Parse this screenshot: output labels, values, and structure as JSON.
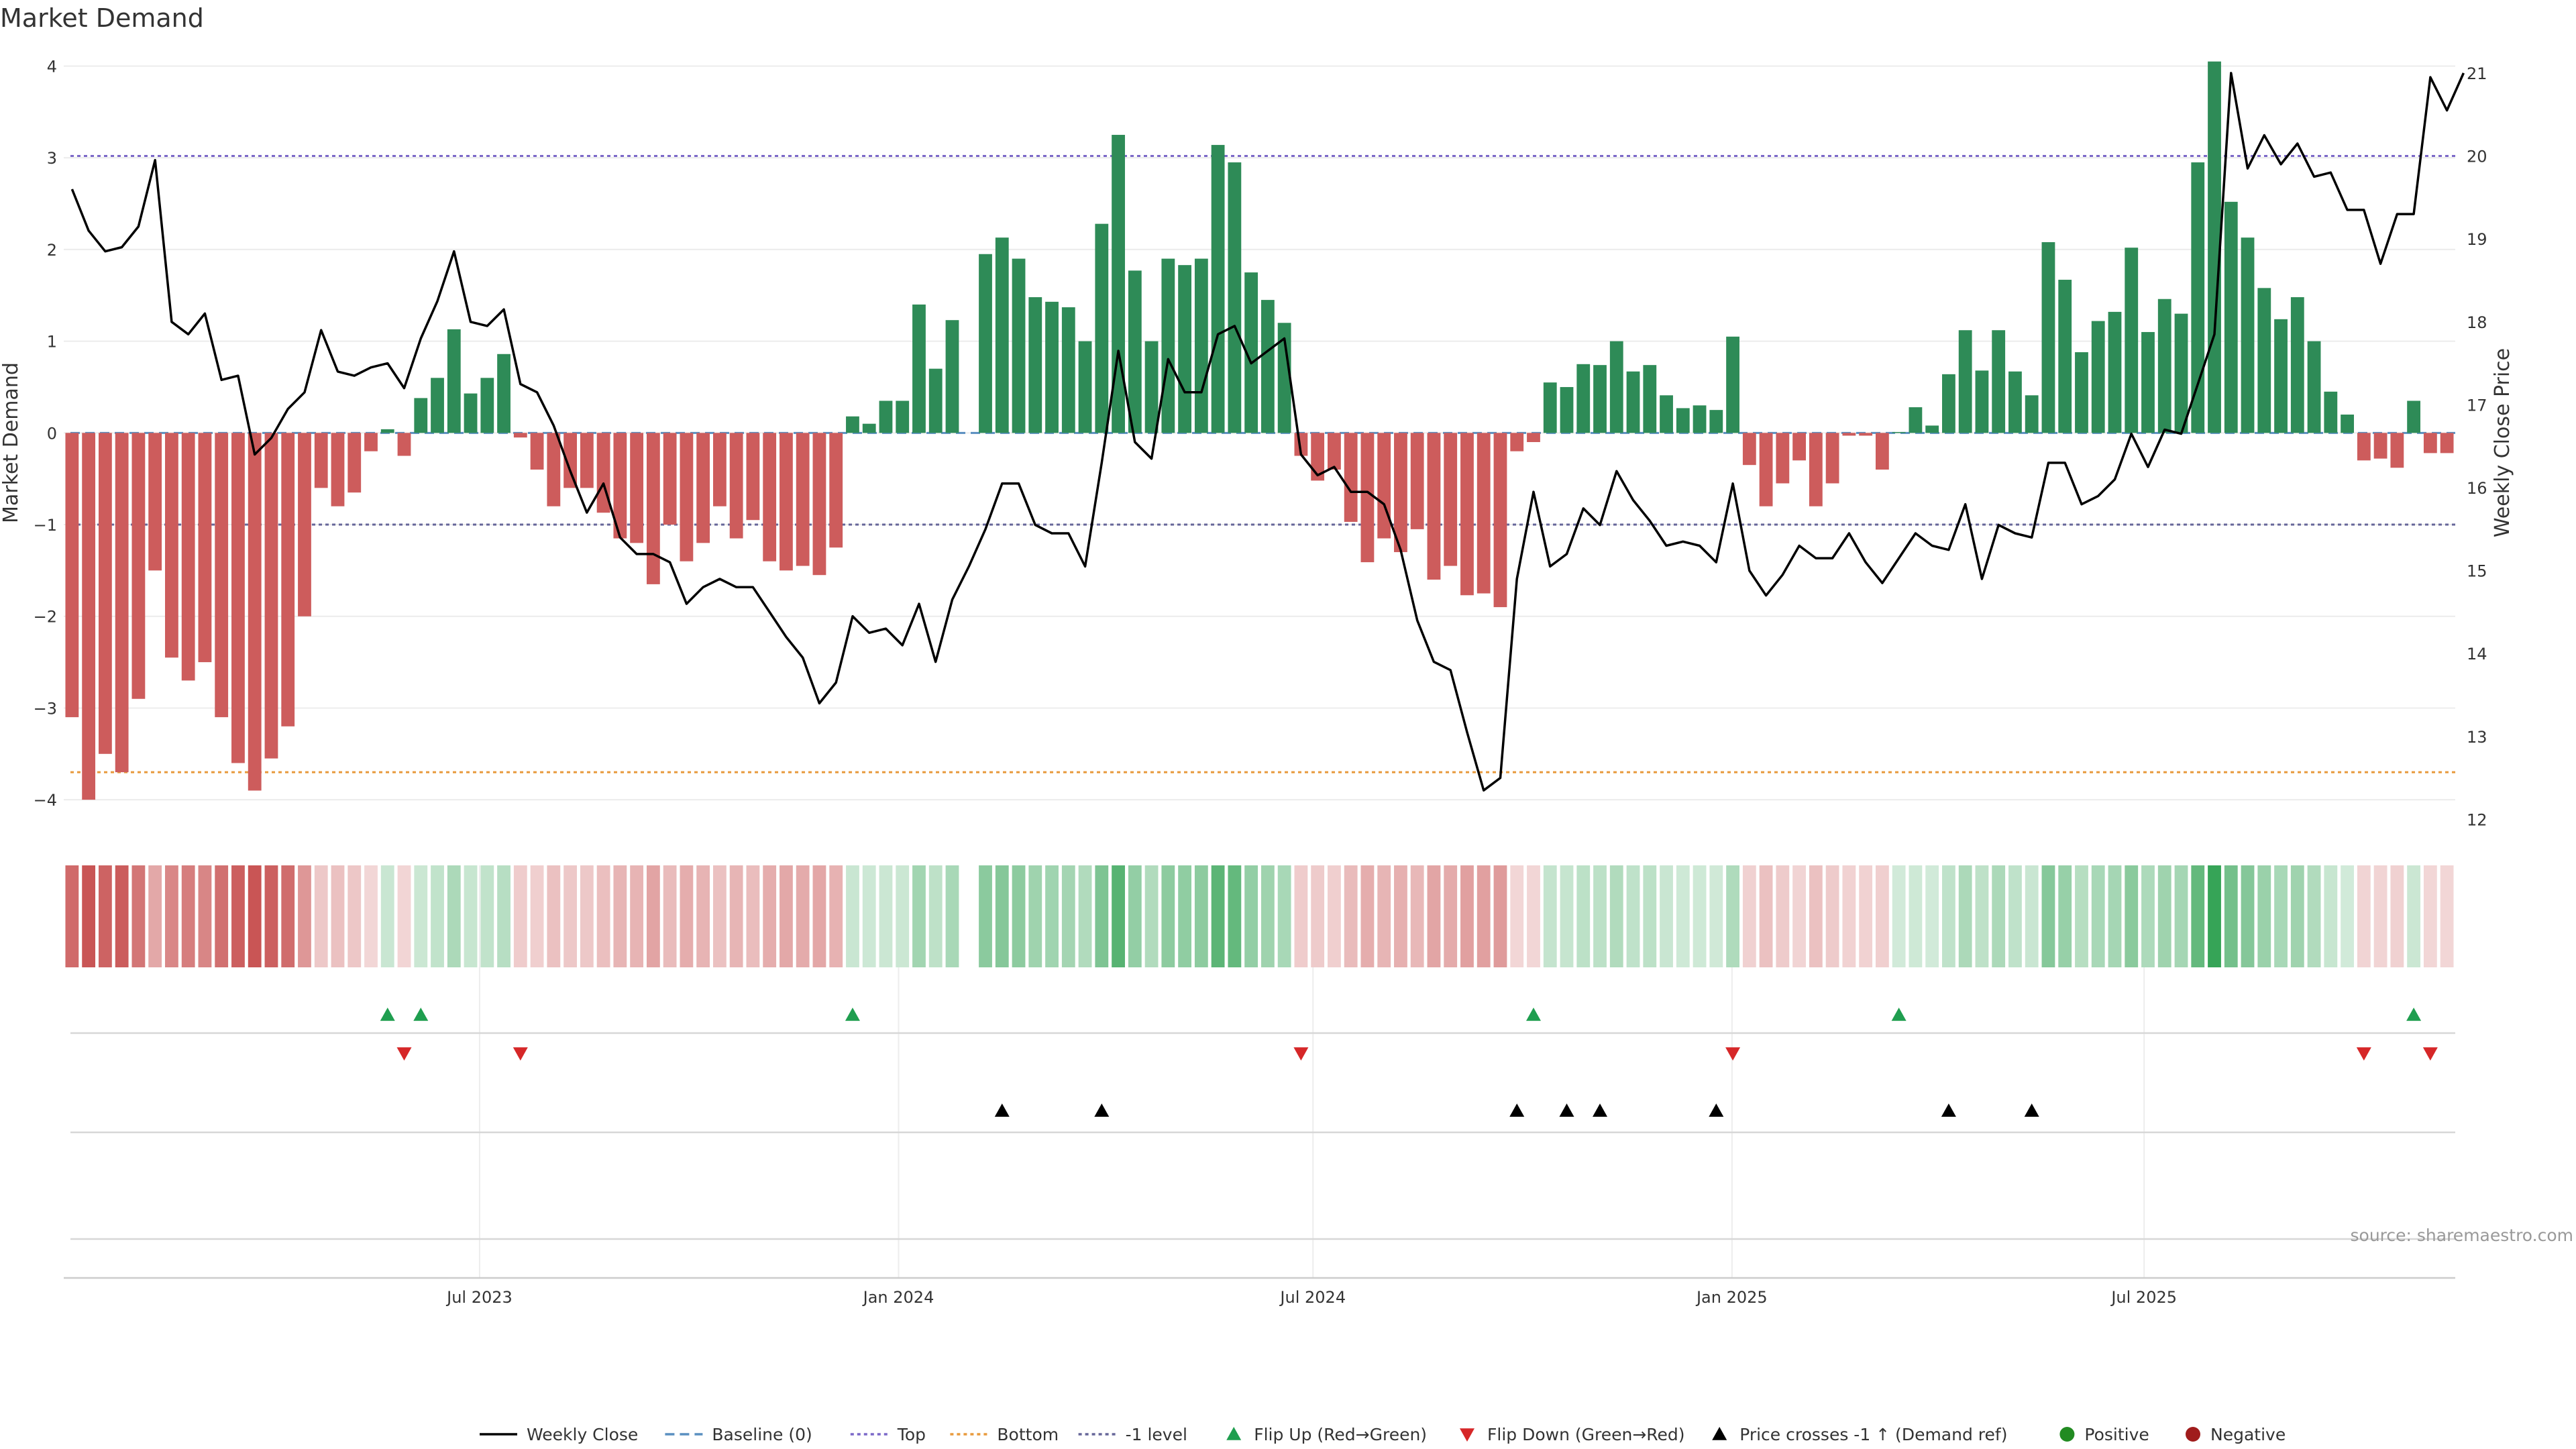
{
  "chart_data": {
    "type": "bar",
    "title": "Market Demand",
    "ylabel": "Market Demand",
    "y2label": "Weekly Close Price",
    "ylim": [
      -4.35,
      4.15
    ],
    "y2lim": [
      11.85,
      21.25
    ],
    "yticks": [
      "4",
      "3",
      "2",
      "1",
      "0",
      "−1",
      "−2",
      "−3",
      "−4"
    ],
    "y2ticks": [
      "21",
      "20",
      "19",
      "18",
      "17",
      "16",
      "15",
      "14",
      "13",
      "12"
    ],
    "x_start": "2023-01-03",
    "x_end": "2025-11-11",
    "xticks": [
      {
        "date": "2023-07-01",
        "label": "Jul 2023"
      },
      {
        "date": "2024-01-01",
        "label": "Jan 2024"
      },
      {
        "date": "2024-07-01",
        "label": "Jul 2024"
      },
      {
        "date": "2025-01-01",
        "label": "Jan 2025"
      },
      {
        "date": "2025-07-01",
        "label": "Jul 2025"
      }
    ],
    "reference_lines": [
      {
        "name": "Top",
        "value": 3.02,
        "color": "#7b68c8"
      },
      {
        "name": "Bottom",
        "value": -3.7,
        "color": "#e89a3c"
      },
      {
        "name": "-1 level",
        "value": -1,
        "color": "#666699"
      },
      {
        "name": "Baseline (0)",
        "value": 0,
        "color": "#5a8fc0"
      }
    ],
    "grid": true,
    "legend_position": "bottom",
    "colors": {
      "positive": "#2e8b57",
      "negative": "#cd5c5c",
      "price": "#000000",
      "flip_up": "#1f9e4f",
      "flip_down": "#d62728",
      "cross": "#000000"
    },
    "series": [
      {
        "name": "Market Demand",
        "type": "bar",
        "values": [
          -3.1,
          -4.0,
          -3.5,
          -3.7,
          -2.9,
          -1.5,
          -2.45,
          -2.7,
          -2.5,
          -3.1,
          -3.6,
          -3.9,
          -3.55,
          -3.2,
          -2.0,
          -0.6,
          -0.8,
          -0.65,
          -0.2,
          0.04,
          -0.25,
          0.38,
          0.6,
          1.13,
          0.43,
          0.6,
          0.86,
          -0.05,
          -0.4,
          -0.8,
          -0.6,
          -0.6,
          -0.87,
          -1.15,
          -1.2,
          -1.65,
          -1.0,
          -1.4,
          -1.2,
          -0.8,
          -1.15,
          -0.95,
          -1.4,
          -1.5,
          -1.45,
          -1.55,
          -1.25,
          0.18,
          0.1,
          0.35,
          0.35,
          1.4,
          0.7,
          1.23,
          null,
          1.95,
          2.13,
          1.9,
          1.48,
          1.43,
          1.37,
          1.0,
          2.28,
          3.25,
          1.77,
          1.0,
          1.9,
          1.83,
          1.9,
          3.14,
          2.95,
          1.75,
          1.45,
          1.2,
          -0.25,
          -0.52,
          -0.4,
          -0.97,
          -1.41,
          -1.15,
          -1.3,
          -1.05,
          -1.6,
          -1.45,
          -1.77,
          -1.75,
          -1.9,
          -0.2,
          -0.1,
          0.55,
          0.5,
          0.75,
          0.74,
          1.0,
          0.67,
          0.74,
          0.41,
          0.27,
          0.3,
          0.25,
          1.05,
          -0.35,
          -0.8,
          -0.55,
          -0.3,
          -0.8,
          -0.55,
          -0.03,
          -0.03,
          -0.4,
          0.01,
          0.28,
          0.08,
          0.64,
          1.12,
          0.68,
          1.12,
          0.67,
          0.41,
          2.08,
          1.67,
          0.88,
          1.22,
          1.32,
          2.02,
          1.1,
          1.46,
          1.3,
          2.95,
          4.05,
          2.52,
          2.13,
          1.58,
          1.24,
          1.48,
          1.0,
          0.45,
          0.2,
          -0.3,
          -0.28,
          -0.38,
          0.35,
          -0.22,
          -0.22
        ]
      },
      {
        "name": "Weekly Close",
        "type": "line",
        "values": [
          19.6,
          19.1,
          18.85,
          18.9,
          19.15,
          19.95,
          18.0,
          17.85,
          18.1,
          17.3,
          17.35,
          16.4,
          16.6,
          16.95,
          17.15,
          17.9,
          17.4,
          17.35,
          17.45,
          17.5,
          17.2,
          17.8,
          18.25,
          18.85,
          18.0,
          17.95,
          18.15,
          17.25,
          17.15,
          16.75,
          16.2,
          15.7,
          16.05,
          15.4,
          15.2,
          15.2,
          15.1,
          14.6,
          14.8,
          14.9,
          14.8,
          14.8,
          14.5,
          14.2,
          13.95,
          13.4,
          13.65,
          14.45,
          14.25,
          14.3,
          14.1,
          14.6,
          13.9,
          14.65,
          15.05,
          15.5,
          16.05,
          16.05,
          15.55,
          15.45,
          15.45,
          15.05,
          16.3,
          17.65,
          16.55,
          16.35,
          17.55,
          17.15,
          17.15,
          17.85,
          17.95,
          17.5,
          17.65,
          17.8,
          16.4,
          16.15,
          16.25,
          15.95,
          15.95,
          15.8,
          15.25,
          14.4,
          13.9,
          13.8,
          13.05,
          12.35,
          12.5,
          14.9,
          15.95,
          15.05,
          15.2,
          15.75,
          15.55,
          16.2,
          15.85,
          15.6,
          15.3,
          15.35,
          15.3,
          15.1,
          16.05,
          15.0,
          14.7,
          14.95,
          15.3,
          15.15,
          15.15,
          15.45,
          15.1,
          14.85,
          15.15,
          15.45,
          15.3,
          15.25,
          15.8,
          14.9,
          15.55,
          15.45,
          15.4,
          16.3,
          16.3,
          15.8,
          15.9,
          16.1,
          16.65,
          16.25,
          16.7,
          16.65,
          17.25,
          17.85,
          21.0,
          19.85,
          20.25,
          19.9,
          20.15,
          19.75,
          19.8,
          19.35,
          19.35,
          18.7,
          19.3,
          19.3,
          20.95,
          20.55,
          21.0
        ]
      }
    ],
    "heat_levels": [
      0.8,
      0.95,
      0.85,
      0.9,
      0.72,
      0.37,
      0.6,
      0.66,
      0.61,
      0.76,
      0.88,
      0.95,
      0.87,
      0.78,
      0.49,
      0.15,
      0.2,
      0.16,
      0.05,
      0.1,
      0.06,
      0.09,
      0.15,
      0.28,
      0.11,
      0.15,
      0.21,
      0.12,
      0.1,
      0.2,
      0.15,
      0.15,
      0.21,
      0.28,
      0.29,
      0.4,
      0.24,
      0.34,
      0.29,
      0.2,
      0.28,
      0.23,
      0.34,
      0.37,
      0.35,
      0.38,
      0.3,
      0.1,
      0.08,
      0.09,
      0.09,
      0.34,
      0.17,
      0.3,
      null,
      0.48,
      0.52,
      0.47,
      0.36,
      0.35,
      0.33,
      0.25,
      0.56,
      0.8,
      0.43,
      0.25,
      0.47,
      0.45,
      0.47,
      0.77,
      0.72,
      0.43,
      0.36,
      0.3,
      0.12,
      0.13,
      0.1,
      0.24,
      0.34,
      0.28,
      0.32,
      0.26,
      0.39,
      0.35,
      0.43,
      0.43,
      0.46,
      0.05,
      0.05,
      0.13,
      0.12,
      0.18,
      0.18,
      0.25,
      0.16,
      0.18,
      0.1,
      0.07,
      0.07,
      0.06,
      0.26,
      0.09,
      0.2,
      0.13,
      0.07,
      0.2,
      0.13,
      0.08,
      0.08,
      0.1,
      0.05,
      0.07,
      0.05,
      0.16,
      0.28,
      0.17,
      0.28,
      0.16,
      0.1,
      0.51,
      0.41,
      0.22,
      0.3,
      0.32,
      0.49,
      0.27,
      0.36,
      0.32,
      0.72,
      1.0,
      0.62,
      0.52,
      0.39,
      0.3,
      0.36,
      0.25,
      0.11,
      0.05,
      0.07,
      0.07,
      0.09,
      0.09,
      0.05,
      0.05
    ],
    "flip_up_indices": [
      19,
      21,
      47,
      88,
      110,
      141
    ],
    "flip_down_indices": [
      20,
      27,
      74,
      100,
      138,
      142
    ],
    "cross_indices": [
      56,
      62,
      87,
      90,
      92,
      99,
      113,
      118
    ]
  },
  "legend": [
    {
      "key": "weekly-close",
      "label": "Weekly Close",
      "marker": "line-solid",
      "color": "#000000"
    },
    {
      "key": "baseline",
      "label": "Baseline (0)",
      "marker": "line-dashed",
      "color": "#5a8fc0"
    },
    {
      "key": "top",
      "label": "Top",
      "marker": "line-dotted",
      "color": "#7b68c8"
    },
    {
      "key": "bottom",
      "label": "Bottom",
      "marker": "line-dotted",
      "color": "#e89a3c"
    },
    {
      "key": "minus-one",
      "label": "-1 level",
      "marker": "line-dotted",
      "color": "#666699"
    },
    {
      "key": "flip-up",
      "label": "Flip Up (Red→Green)",
      "marker": "triangle-up",
      "color": "#1f9e4f"
    },
    {
      "key": "flip-down",
      "label": "Flip Down (Green→Red)",
      "marker": "triangle-down",
      "color": "#d62728"
    },
    {
      "key": "price-cross",
      "label": "Price crosses -1 ↑ (Demand ref)",
      "marker": "triangle-up",
      "color": "#000000"
    },
    {
      "key": "positive",
      "label": "Positive",
      "marker": "circle",
      "color": "#228b22"
    },
    {
      "key": "negative",
      "label": "Negative",
      "marker": "circle",
      "color": "#a01c1c"
    }
  ],
  "source": "source: sharemaestro.com"
}
